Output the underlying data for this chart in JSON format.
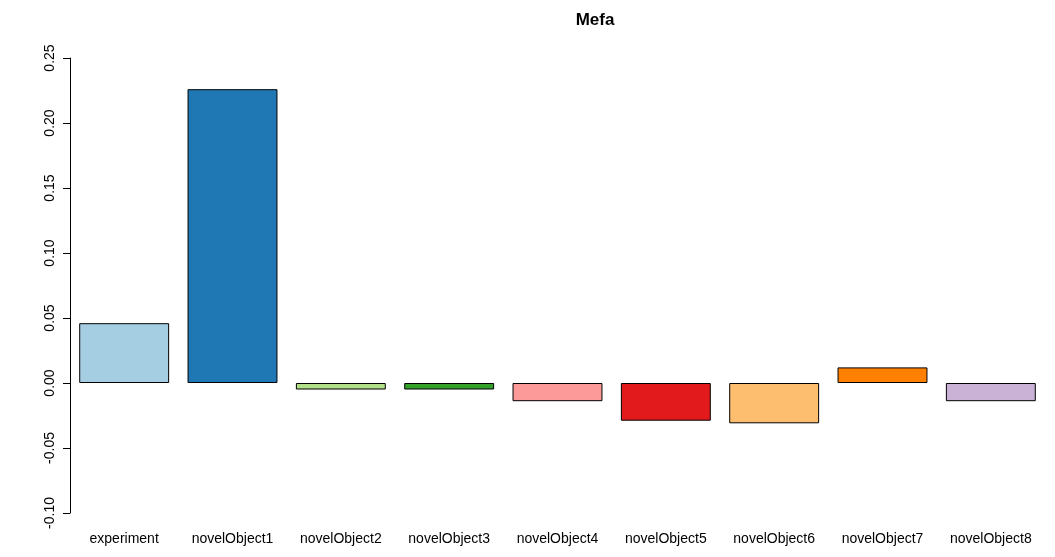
{
  "chart_data": {
    "type": "bar",
    "title": "Mefa",
    "categories": [
      "experiment",
      "novelObject1",
      "novelObject2",
      "novelObject3",
      "novelObject4",
      "novelObject5",
      "novelObject6",
      "novelObject7",
      "novelObject8"
    ],
    "values": [
      0.046,
      0.226,
      -0.005,
      -0.005,
      -0.014,
      -0.029,
      -0.031,
      0.012,
      -0.014
    ],
    "colors": [
      "#a6cee3",
      "#1f78b4",
      "#b2df8a",
      "#33a02c",
      "#fb9a99",
      "#e31a1c",
      "#fdbf6f",
      "#ff7f00",
      "#cab2d6"
    ],
    "ylim": [
      -0.1,
      0.25
    ],
    "yticks": [
      {
        "value": -0.1,
        "label": "-0.10"
      },
      {
        "value": -0.05,
        "label": "-0.05"
      },
      {
        "value": 0,
        "label": "0.00"
      },
      {
        "value": 0.05,
        "label": "0.05"
      },
      {
        "value": 0.1,
        "label": "0.10"
      },
      {
        "value": 0.15,
        "label": "0.15"
      },
      {
        "value": 0.2,
        "label": "0.20"
      },
      {
        "value": 0.25,
        "label": "0.25"
      }
    ],
    "grid": false
  }
}
